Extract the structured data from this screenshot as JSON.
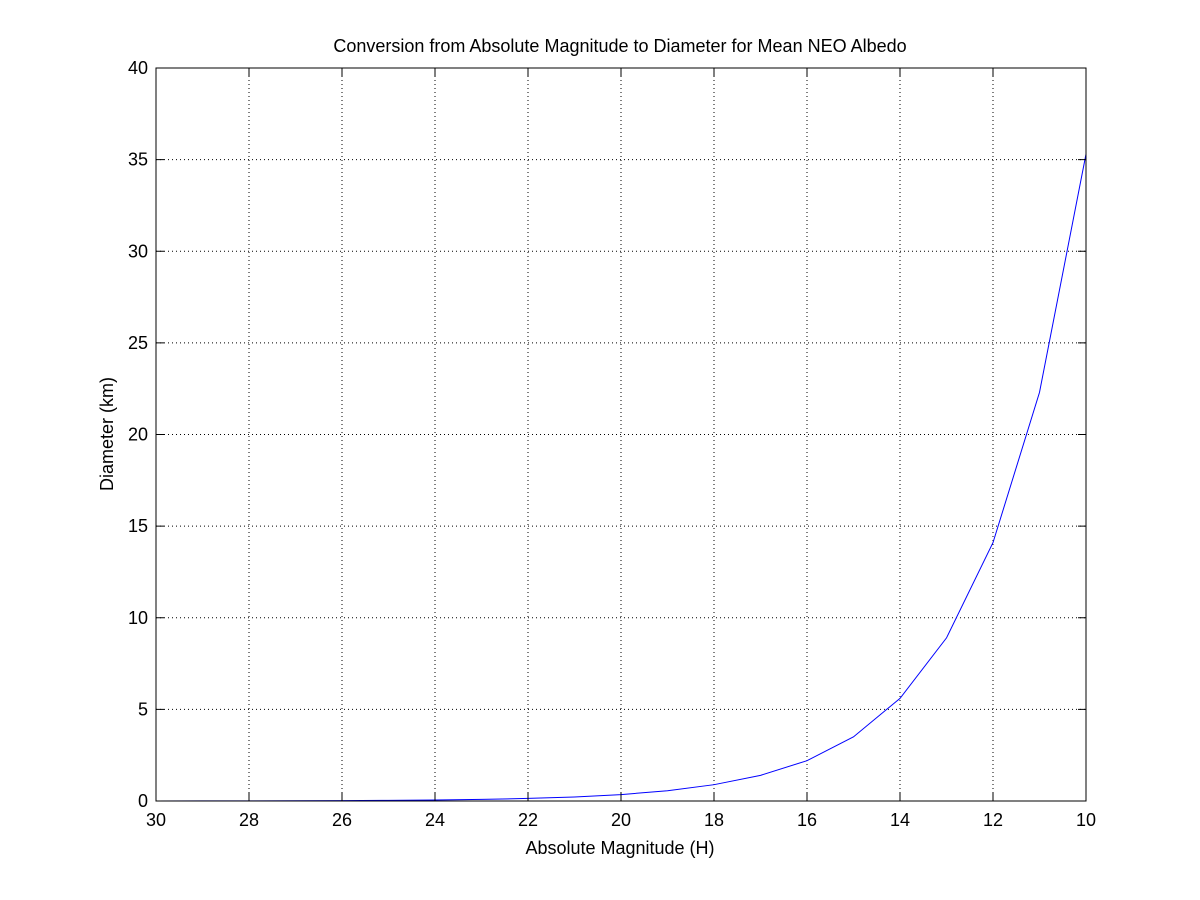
{
  "chart_data": {
    "type": "line",
    "title": "Conversion from Absolute Magnitude to Diameter for Mean NEO Albedo",
    "xlabel": "Absolute Magnitude (H)",
    "ylabel": "Diameter (km)",
    "xlim": [
      30,
      10
    ],
    "x_reversed": true,
    "ylim": [
      0,
      40
    ],
    "xticks": [
      30,
      28,
      26,
      24,
      22,
      20,
      18,
      16,
      14,
      12,
      10
    ],
    "yticks": [
      0,
      5,
      10,
      15,
      20,
      25,
      30,
      35,
      40
    ],
    "grid": true,
    "grid_style": "dotted",
    "line_color": "#0000ff",
    "series": [
      {
        "x": [
          30,
          29,
          28,
          27,
          26,
          25,
          24,
          23,
          22,
          21,
          20,
          19,
          18,
          17,
          16,
          15,
          14,
          13,
          12,
          11,
          10
        ],
        "y": [
          0.0035,
          0.0056,
          0.0089,
          0.014,
          0.022,
          0.035,
          0.056,
          0.089,
          0.14,
          0.22,
          0.35,
          0.56,
          0.89,
          1.4,
          2.2,
          3.5,
          5.6,
          8.9,
          14.1,
          22.3,
          35.3
        ]
      }
    ]
  }
}
